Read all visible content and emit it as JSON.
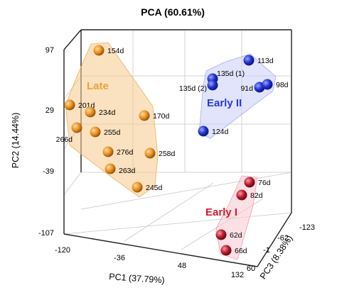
{
  "chart_data": {
    "type": "scatter",
    "title": "PCA (60.61%)",
    "xlabel": "PC1 (37.79%)",
    "ylabel": "PC2 (14.44%)",
    "zlabel": "PC3 (8.38%)",
    "x_ticks": [
      "-120",
      "-36",
      "48",
      "132"
    ],
    "y_ticks": [
      "97",
      "29",
      "-39",
      "-107"
    ],
    "z_ticks": [
      "-123",
      "-62",
      "-1",
      "60"
    ],
    "grid": true,
    "groups": [
      {
        "name": "Late",
        "color": "#e8901e",
        "label_color": "#e8a23c",
        "hull_color": "#f6c98a",
        "points": [
          {
            "label": "154d"
          },
          {
            "label": "201d"
          },
          {
            "label": "234d"
          },
          {
            "label": "266d"
          },
          {
            "label": "255d"
          },
          {
            "label": "170d"
          },
          {
            "label": "276d"
          },
          {
            "label": "258d"
          },
          {
            "label": "263d"
          },
          {
            "label": "245d"
          }
        ]
      },
      {
        "name": "Early II",
        "color": "#1f2fd0",
        "label_color": "#2a3bd8",
        "hull_color": "#c9cdf5",
        "points": [
          {
            "label": "113d"
          },
          {
            "label": "135d (1)"
          },
          {
            "label": "135d (2)"
          },
          {
            "label": "91d"
          },
          {
            "label": "98d"
          },
          {
            "label": "124d"
          }
        ]
      },
      {
        "name": "Early I",
        "color": "#b8182a",
        "label_color": "#d01c2c",
        "hull_color": "#f7c6d0",
        "points": [
          {
            "label": "76d"
          },
          {
            "label": "82d"
          },
          {
            "label": "62d"
          },
          {
            "label": "66d"
          }
        ]
      }
    ]
  }
}
